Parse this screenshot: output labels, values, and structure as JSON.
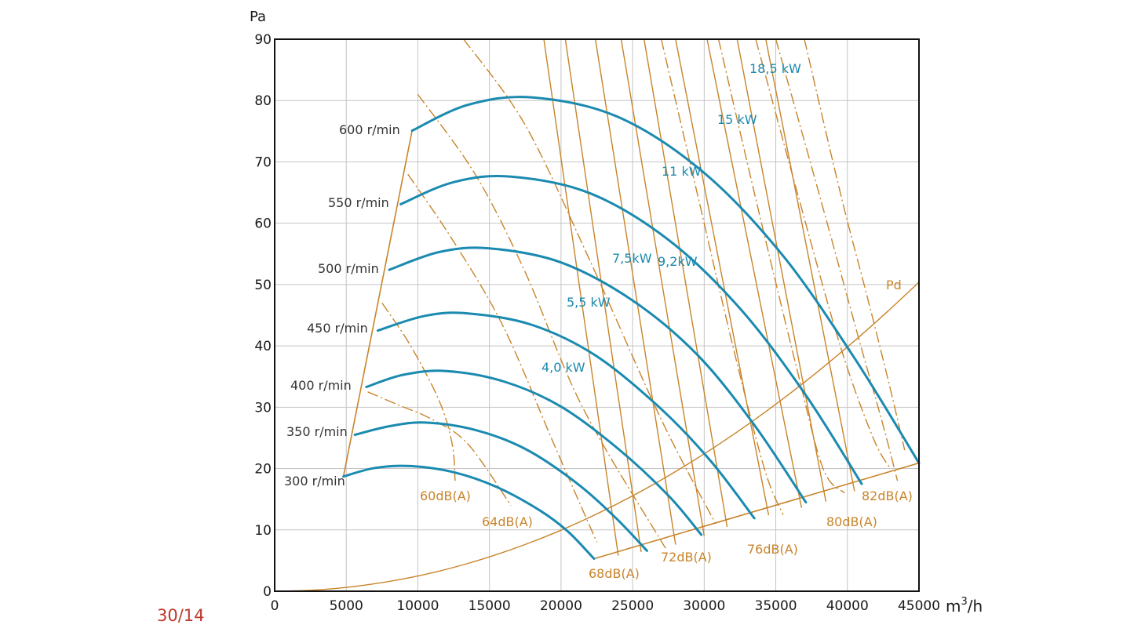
{
  "page_number": "30/14",
  "colors": {
    "speed_curve": "#1b8ab0",
    "orange": "#c8842a",
    "grid": "#c4c4c4",
    "axis": "#111111"
  },
  "chart_data": {
    "type": "line",
    "ylabel": "Pa",
    "xlabel_base": "m",
    "xlabel_sup": "3",
    "xlabel_tail": "/h",
    "xlim": [
      0,
      45000
    ],
    "ylim": [
      0,
      90
    ],
    "x_ticks": [
      "0",
      "5000",
      "10000",
      "15000",
      "20000",
      "25000",
      "30000",
      "35000",
      "40000",
      "45000"
    ],
    "y_ticks": [
      "0",
      "10",
      "20",
      "30",
      "40",
      "50",
      "60",
      "70",
      "80",
      "90"
    ],
    "speed_curves": [
      {
        "name": "300 r/min",
        "points": [
          [
            4800,
            18.7
          ],
          [
            7000,
            20.1
          ],
          [
            9500,
            20.4
          ],
          [
            12500,
            19.4
          ],
          [
            15500,
            17.0
          ],
          [
            18500,
            13.2
          ],
          [
            20500,
            9.7
          ],
          [
            22300,
            5.3
          ]
        ]
      },
      {
        "name": "350 r/min",
        "points": [
          [
            5600,
            25.5
          ],
          [
            8000,
            26.9
          ],
          [
            10500,
            27.5
          ],
          [
            14000,
            26.3
          ],
          [
            17500,
            23.2
          ],
          [
            21000,
            17.8
          ],
          [
            23800,
            12.0
          ],
          [
            26000,
            6.6
          ]
        ]
      },
      {
        "name": "400 r/min",
        "points": [
          [
            6400,
            33.3
          ],
          [
            9000,
            35.3
          ],
          [
            12000,
            35.9
          ],
          [
            16000,
            34.2
          ],
          [
            20000,
            30.1
          ],
          [
            24000,
            23.2
          ],
          [
            27500,
            15.6
          ],
          [
            29800,
            9.2
          ]
        ]
      },
      {
        "name": "450 r/min",
        "points": [
          [
            7200,
            42.5
          ],
          [
            10500,
            44.9
          ],
          [
            13500,
            45.3
          ],
          [
            18000,
            43.4
          ],
          [
            22500,
            38.3
          ],
          [
            27000,
            29.7
          ],
          [
            30500,
            21.1
          ],
          [
            33500,
            11.9
          ]
        ]
      },
      {
        "name": "500 r/min",
        "points": [
          [
            8000,
            52.4
          ],
          [
            11500,
            55.3
          ],
          [
            15000,
            55.9
          ],
          [
            20000,
            53.6
          ],
          [
            25000,
            47.4
          ],
          [
            29500,
            38.6
          ],
          [
            33500,
            27.1
          ],
          [
            37100,
            14.5
          ]
        ]
      },
      {
        "name": "550 r/min",
        "points": [
          [
            8800,
            63.1
          ],
          [
            12500,
            66.7
          ],
          [
            16500,
            67.6
          ],
          [
            22000,
            64.9
          ],
          [
            27500,
            57.3
          ],
          [
            32500,
            46.1
          ],
          [
            37000,
            32.3
          ],
          [
            41000,
            17.5
          ]
        ]
      },
      {
        "name": "600 r/min",
        "points": [
          [
            9600,
            75.1
          ],
          [
            13500,
            79.3
          ],
          [
            18000,
            80.5
          ],
          [
            24000,
            77.3
          ],
          [
            30000,
            68.2
          ],
          [
            35500,
            54.7
          ],
          [
            40500,
            38.0
          ],
          [
            45000,
            20.9
          ]
        ]
      }
    ],
    "speed_labels": [
      "600 r/min",
      "550 r/min",
      "500 r/min",
      "450 r/min",
      "400 r/min",
      "350 r/min",
      "300 r/min"
    ],
    "power_labels": [
      "18,5 kW",
      "15 kW",
      "11 kW",
      "7,5kW",
      "9,2kW",
      "5,5 kW",
      "4,0 kW"
    ],
    "noise_labels": [
      "60dB(A)",
      "64dB(A)",
      "68dB(A)",
      "72dB(A)",
      "76dB(A)",
      "80dB(A)",
      "82dB(A)"
    ],
    "pd_label": "Pd",
    "pd_curve": {
      "x": [
        0,
        45000
      ],
      "y": [
        0,
        50.4
      ]
    },
    "boundary_left": [
      [
        4800,
        18.7
      ],
      [
        9600,
        75.1
      ]
    ],
    "boundary_bottom": [
      [
        22300,
        5.3
      ],
      [
        45000,
        20.9
      ]
    ],
    "power_lines": [
      {
        "from": [
          18800,
          90
        ],
        "to": [
          24000,
          5.8
        ]
      },
      {
        "from": [
          20300,
          90
        ],
        "to": [
          25600,
          6.4
        ]
      },
      {
        "from": [
          22400,
          90
        ],
        "to": [
          28000,
          7.6
        ]
      },
      {
        "from": [
          24200,
          90
        ],
        "to": [
          30000,
          9.0
        ]
      },
      {
        "from": [
          25800,
          90
        ],
        "to": [
          31600,
          10.5
        ]
      },
      {
        "from": [
          28000,
          90
        ],
        "to": [
          34500,
          12.4
        ]
      },
      {
        "from": [
          30200,
          90
        ],
        "to": [
          36800,
          13.6
        ]
      },
      {
        "from": [
          32300,
          90
        ],
        "to": [
          38500,
          14.6
        ]
      },
      {
        "from": [
          34300,
          90
        ],
        "to": [
          40500,
          16.3
        ]
      }
    ],
    "noise_curves": [
      {
        "points": [
          [
            7500,
            47.0
          ],
          [
            9500,
            40.0
          ],
          [
            11500,
            31.0
          ],
          [
            12400,
            24.0
          ],
          [
            12600,
            18.0
          ]
        ]
      },
      {
        "points": [
          [
            6500,
            32.5
          ],
          [
            8500,
            30.5
          ],
          [
            11000,
            28.0
          ],
          [
            13500,
            24.0
          ],
          [
            16500,
            14.0
          ]
        ]
      },
      {
        "points": [
          [
            9300,
            68.0
          ],
          [
            12500,
            57.0
          ],
          [
            16000,
            43.0
          ],
          [
            19500,
            24.0
          ],
          [
            22500,
            8.0
          ]
        ]
      },
      {
        "points": [
          [
            10000,
            81.0
          ],
          [
            14000,
            68.0
          ],
          [
            17500,
            52.0
          ],
          [
            21500,
            30.0
          ],
          [
            27300,
            7.0
          ]
        ]
      },
      {
        "points": [
          [
            13200,
            90.0
          ],
          [
            17500,
            76.0
          ],
          [
            22000,
            54.0
          ],
          [
            27000,
            28.0
          ],
          [
            30800,
            11.0
          ]
        ]
      },
      {
        "points": [
          [
            27000,
            90.0
          ],
          [
            29500,
            65.0
          ],
          [
            32000,
            40.0
          ],
          [
            34200,
            20.0
          ],
          [
            35500,
            12.5
          ]
        ]
      },
      {
        "points": [
          [
            31000,
            90.0
          ],
          [
            33800,
            62.0
          ],
          [
            36500,
            36.0
          ],
          [
            38300,
            20.0
          ],
          [
            39800,
            16.0
          ]
        ]
      },
      {
        "points": [
          [
            33600,
            90.0
          ],
          [
            36500,
            65.0
          ],
          [
            39500,
            40.0
          ],
          [
            41800,
            25.0
          ],
          [
            43000,
            20.0
          ]
        ]
      },
      {
        "points": [
          [
            37000,
            90.0
          ],
          [
            39500,
            65.0
          ],
          [
            41500,
            47.0
          ],
          [
            43000,
            33.0
          ],
          [
            44000,
            23.0
          ]
        ]
      },
      {
        "points": [
          [
            35000,
            90.0
          ],
          [
            38000,
            65.0
          ],
          [
            40700,
            42.0
          ],
          [
            42500,
            27.0
          ],
          [
            43500,
            18.0
          ]
        ]
      }
    ]
  }
}
